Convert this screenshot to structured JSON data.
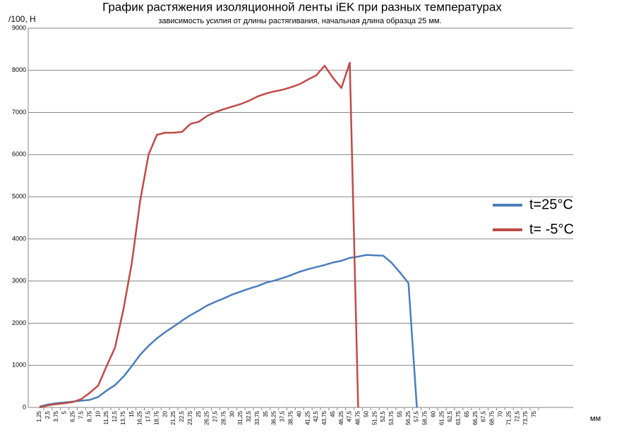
{
  "chart_data": {
    "type": "line",
    "title": "График растяжения изоляционной ленты iEK при разных температурах",
    "subtitle": "зависимость усилия от длины растягивания, начальная длина образца 25 мм.",
    "y_label": "/100, Н",
    "x_label": "мм",
    "categories": [
      "1,25",
      "2,5",
      "3,75",
      "5",
      "6,25",
      "7,5",
      "8,75",
      "10",
      "11,25",
      "12,5",
      "13,75",
      "15",
      "16,25",
      "17,5",
      "18,75",
      "20",
      "21,25",
      "22,5",
      "23,75",
      "25",
      "26,25",
      "27,5",
      "28,75",
      "30",
      "31,25",
      "32,5",
      "33,75",
      "35",
      "36,25",
      "37,5",
      "38,75",
      "40",
      "41,25",
      "42,5",
      "43,75",
      "45",
      "46,25",
      "47,5",
      "48,75",
      "50",
      "51,25",
      "52,5",
      "53,75",
      "55",
      "56,25",
      "57,5",
      "58,75",
      "60",
      "61,25",
      "62,5",
      "63,75",
      "65",
      "66,25",
      "67,5",
      "68,75",
      "70",
      "71,25",
      "72,5",
      "73,75",
      "75"
    ],
    "series": [
      {
        "name": "t=25°C",
        "color": "#4a7ebb",
        "values": [
          20,
          70,
          100,
          120,
          140,
          160,
          180,
          250,
          400,
          530,
          730,
          980,
          1250,
          1460,
          1640,
          1790,
          1920,
          2060,
          2190,
          2300,
          2420,
          2510,
          2590,
          2680,
          2750,
          2820,
          2880,
          2960,
          3010,
          3070,
          3140,
          3220,
          3280,
          3330,
          3380,
          3440,
          3480,
          3550,
          3580,
          3620,
          3610,
          3600,
          3430,
          3200,
          2950,
          0,
          null,
          null,
          null,
          null,
          null,
          null,
          null,
          null,
          null,
          null,
          null,
          null,
          null,
          null
        ]
      },
      {
        "name": "t= -5°C",
        "color": "#be4b48",
        "values": [
          0,
          50,
          80,
          100,
          130,
          200,
          350,
          520,
          980,
          1420,
          2320,
          3420,
          4900,
          6000,
          6470,
          6520,
          6520,
          6540,
          6730,
          6780,
          6920,
          7010,
          7080,
          7140,
          7200,
          7280,
          7380,
          7450,
          7500,
          7540,
          7600,
          7670,
          7780,
          7880,
          8110,
          7820,
          7580,
          8180,
          0,
          null,
          null,
          null,
          null,
          null,
          null,
          null,
          null,
          null,
          null,
          null,
          null,
          null,
          null,
          null,
          null,
          null,
          null,
          null,
          null,
          null
        ]
      }
    ],
    "ylim": [
      0,
      9000
    ],
    "yticks": [
      0,
      1000,
      2000,
      3000,
      4000,
      5000,
      6000,
      7000,
      8000,
      9000
    ],
    "grid": true,
    "legend": "right"
  }
}
